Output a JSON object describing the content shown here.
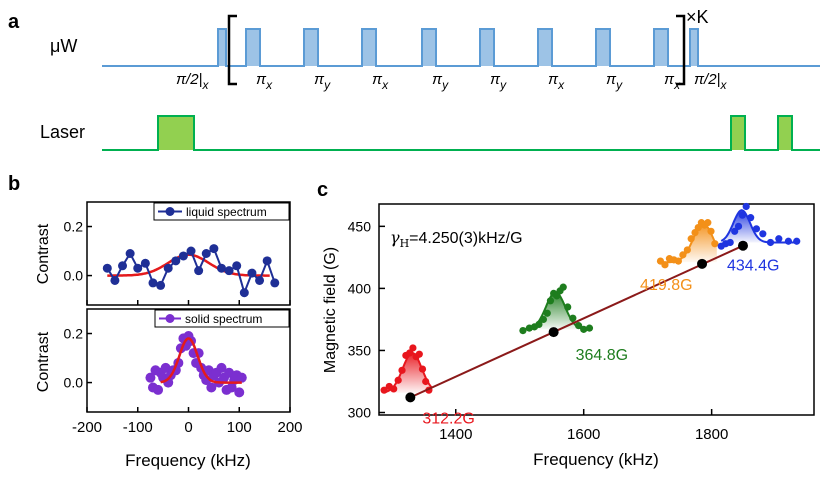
{
  "colors": {
    "mw_line": "#5B9BD5",
    "mw_fill": "#9DC3E6",
    "laser_line": "#00B050",
    "laser_fill": "#92D050",
    "b_blue": "#1F2F96",
    "b_purple": "#7B2FD0",
    "b_fit": "#E41A1C",
    "c_red": "#E8161D",
    "c_green": "#1E7D1E",
    "c_orange": "#F39019",
    "c_blue": "#1F35E0",
    "c_line": "#8B1A1A",
    "c_dot": "#000000"
  },
  "panel_a": {
    "label": "a",
    "mw_label": "μW",
    "laser_label": "Laser",
    "repeat_label": "×K",
    "pulse_labels": [
      "π/2|x",
      "πx",
      "πy",
      "πx",
      "πy",
      "πy",
      "πx",
      "πy",
      "πx",
      "π/2|x"
    ],
    "pulse_labels_parts": [
      {
        "main": "π/2|",
        "sub": "x"
      },
      {
        "main": "π",
        "sub": "x"
      },
      {
        "main": "π",
        "sub": "y"
      },
      {
        "main": "π",
        "sub": "x"
      },
      {
        "main": "π",
        "sub": "y"
      },
      {
        "main": "π",
        "sub": "y"
      },
      {
        "main": "π",
        "sub": "x"
      },
      {
        "main": "π",
        "sub": "y"
      },
      {
        "main": "π",
        "sub": "x"
      },
      {
        "main": "π/2|",
        "sub": "x"
      }
    ]
  },
  "chart_data": [
    {
      "id": "b_top",
      "type": "line",
      "panel_label": "b",
      "legend": "liquid spectrum",
      "ylabel": "Contrast",
      "xlim": [
        -200,
        200
      ],
      "ylim": [
        -0.12,
        0.3
      ],
      "yticks": [
        0.0,
        0.2
      ],
      "ytick_labels": [
        "0.0",
        "0.2"
      ],
      "x": [
        -160,
        -145,
        -130,
        -115,
        -100,
        -85,
        -70,
        -55,
        -40,
        -25,
        -10,
        5,
        20,
        35,
        50,
        65,
        80,
        95,
        110,
        125,
        140,
        155,
        170
      ],
      "y": [
        0.03,
        -0.02,
        0.04,
        0.09,
        0.03,
        0.05,
        -0.03,
        -0.04,
        0.03,
        0.06,
        0.08,
        0.1,
        0.02,
        0.09,
        0.11,
        0.03,
        0.02,
        0.04,
        -0.07,
        0.01,
        -0.02,
        0.06,
        -0.03
      ],
      "fit": {
        "type": "gaussian",
        "amplitude": 0.085,
        "center": 0,
        "sigma": 40,
        "offset": 0.0,
        "xrange": [
          -160,
          160
        ]
      }
    },
    {
      "id": "b_bottom",
      "type": "scatter",
      "legend": "solid spectrum",
      "xlabel": "Frequency (kHz)",
      "ylabel": "Contrast",
      "xlim": [
        -200,
        200
      ],
      "ylim": [
        -0.12,
        0.3
      ],
      "xticks": [
        -200,
        -100,
        0,
        100,
        200
      ],
      "xtick_labels": [
        "-200",
        "-100",
        "0",
        "100",
        "200"
      ],
      "yticks": [
        0.0,
        0.2
      ],
      "ytick_labels": [
        "0.0",
        "0.2"
      ],
      "x": [
        -75,
        -70,
        -65,
        -60,
        -55,
        -50,
        -45,
        -40,
        -35,
        -30,
        -25,
        -20,
        -15,
        -10,
        -5,
        0,
        5,
        10,
        15,
        20,
        25,
        30,
        35,
        40,
        45,
        50,
        55,
        60,
        65,
        70,
        75,
        80,
        85,
        90,
        95,
        100,
        105
      ],
      "y": [
        0.02,
        -0.02,
        0.05,
        -0.03,
        0.04,
        0.02,
        0.06,
        0.0,
        0.03,
        0.05,
        0.05,
        0.08,
        0.14,
        0.18,
        0.15,
        0.19,
        0.17,
        0.12,
        0.08,
        0.12,
        0.06,
        0.03,
        0.01,
        0.05,
        -0.02,
        0.03,
        0.04,
        0.0,
        0.06,
        0.02,
        -0.03,
        0.04,
        -0.02,
        0.01,
        0.03,
        -0.04,
        0.02
      ],
      "fit": {
        "type": "gaussian",
        "amplitude": 0.18,
        "center": 0,
        "sigma": 18,
        "offset": 0.0,
        "xrange": [
          -55,
          105
        ]
      }
    },
    {
      "id": "c",
      "type": "scatter",
      "panel_label": "c",
      "xlabel": "Frequency (kHz)",
      "ylabel": "Magnetic field (G)",
      "xlim": [
        1280,
        1960
      ],
      "ylim": [
        298,
        468
      ],
      "xticks": [
        1400,
        1600,
        1800
      ],
      "xtick_labels": [
        "1400",
        "1600",
        "1800"
      ],
      "yticks": [
        300,
        350,
        400,
        450
      ],
      "ytick_labels": [
        "300",
        "350",
        "400",
        "450"
      ],
      "annotation": "γH=4.250(3)kHz/G",
      "annotation_parts": {
        "gamma": "γ",
        "sub": "H",
        "rest": "=4.250(3)kHz/G"
      },
      "fit_line": {
        "x": [
          1329,
          1849
        ],
        "y": [
          312.2,
          434.4
        ]
      },
      "points": [
        {
          "x": 1329,
          "y": 312.2,
          "label": "312.2G",
          "color_key": "c_red"
        },
        {
          "x": 1553,
          "y": 364.8,
          "label": "364.8G",
          "color_key": "c_green"
        },
        {
          "x": 1785,
          "y": 419.8,
          "label": "419.8G",
          "color_key": "c_orange"
        },
        {
          "x": 1849,
          "y": 434.4,
          "label": "434.4G",
          "color_key": "c_blue"
        }
      ],
      "peaks": [
        {
          "name": "red",
          "color_key": "c_red",
          "x": [
            1288,
            1296,
            1303,
            1310,
            1316,
            1322,
            1328,
            1333,
            1338,
            1343,
            1348,
            1353,
            1358
          ],
          "y": [
            318,
            321,
            319,
            326,
            334,
            346,
            348,
            352,
            345,
            347,
            335,
            325,
            318
          ],
          "fit": {
            "base": 316,
            "amp": 32,
            "center": 1332,
            "sigma": 15,
            "xrange": [
              1288,
              1362
            ]
          }
        },
        {
          "name": "green",
          "color_key": "c_green",
          "x": [
            1505,
            1515,
            1523,
            1530,
            1537,
            1543,
            1548,
            1553,
            1558,
            1563,
            1568,
            1575,
            1583,
            1592,
            1600,
            1609
          ],
          "y": [
            366,
            368,
            369,
            371,
            375,
            380,
            390,
            396,
            394,
            398,
            401,
            385,
            376,
            370,
            367,
            368
          ],
          "fit": {
            "base": 367,
            "amp": 30,
            "center": 1556,
            "sigma": 15,
            "xrange": [
              1505,
              1609
            ]
          }
        },
        {
          "name": "orange",
          "color_key": "c_orange",
          "x": [
            1720,
            1727,
            1734,
            1741,
            1748,
            1755,
            1762,
            1768,
            1774,
            1779,
            1784,
            1789,
            1794,
            1799,
            1805
          ],
          "y": [
            422,
            419,
            424,
            423,
            422,
            427,
            431,
            440,
            445,
            449,
            453,
            451,
            453,
            446,
            436
          ],
          "fit": {
            "base": 421,
            "amp": 31,
            "center": 1787,
            "sigma": 16,
            "xrange": [
              1720,
              1808
            ]
          }
        },
        {
          "name": "blue",
          "color_key": "c_blue",
          "x": [
            1815,
            1822,
            1829,
            1836,
            1842,
            1848,
            1854,
            1861,
            1870,
            1880,
            1892,
            1905,
            1920,
            1933
          ],
          "y": [
            434,
            436,
            437,
            446,
            450,
            459,
            466,
            457,
            448,
            444,
            437,
            440,
            438,
            438
          ],
          "fit": {
            "base": 437,
            "amp": 26,
            "center": 1847,
            "sigma": 13,
            "xrange": [
              1815,
              1933
            ]
          }
        }
      ]
    }
  ]
}
